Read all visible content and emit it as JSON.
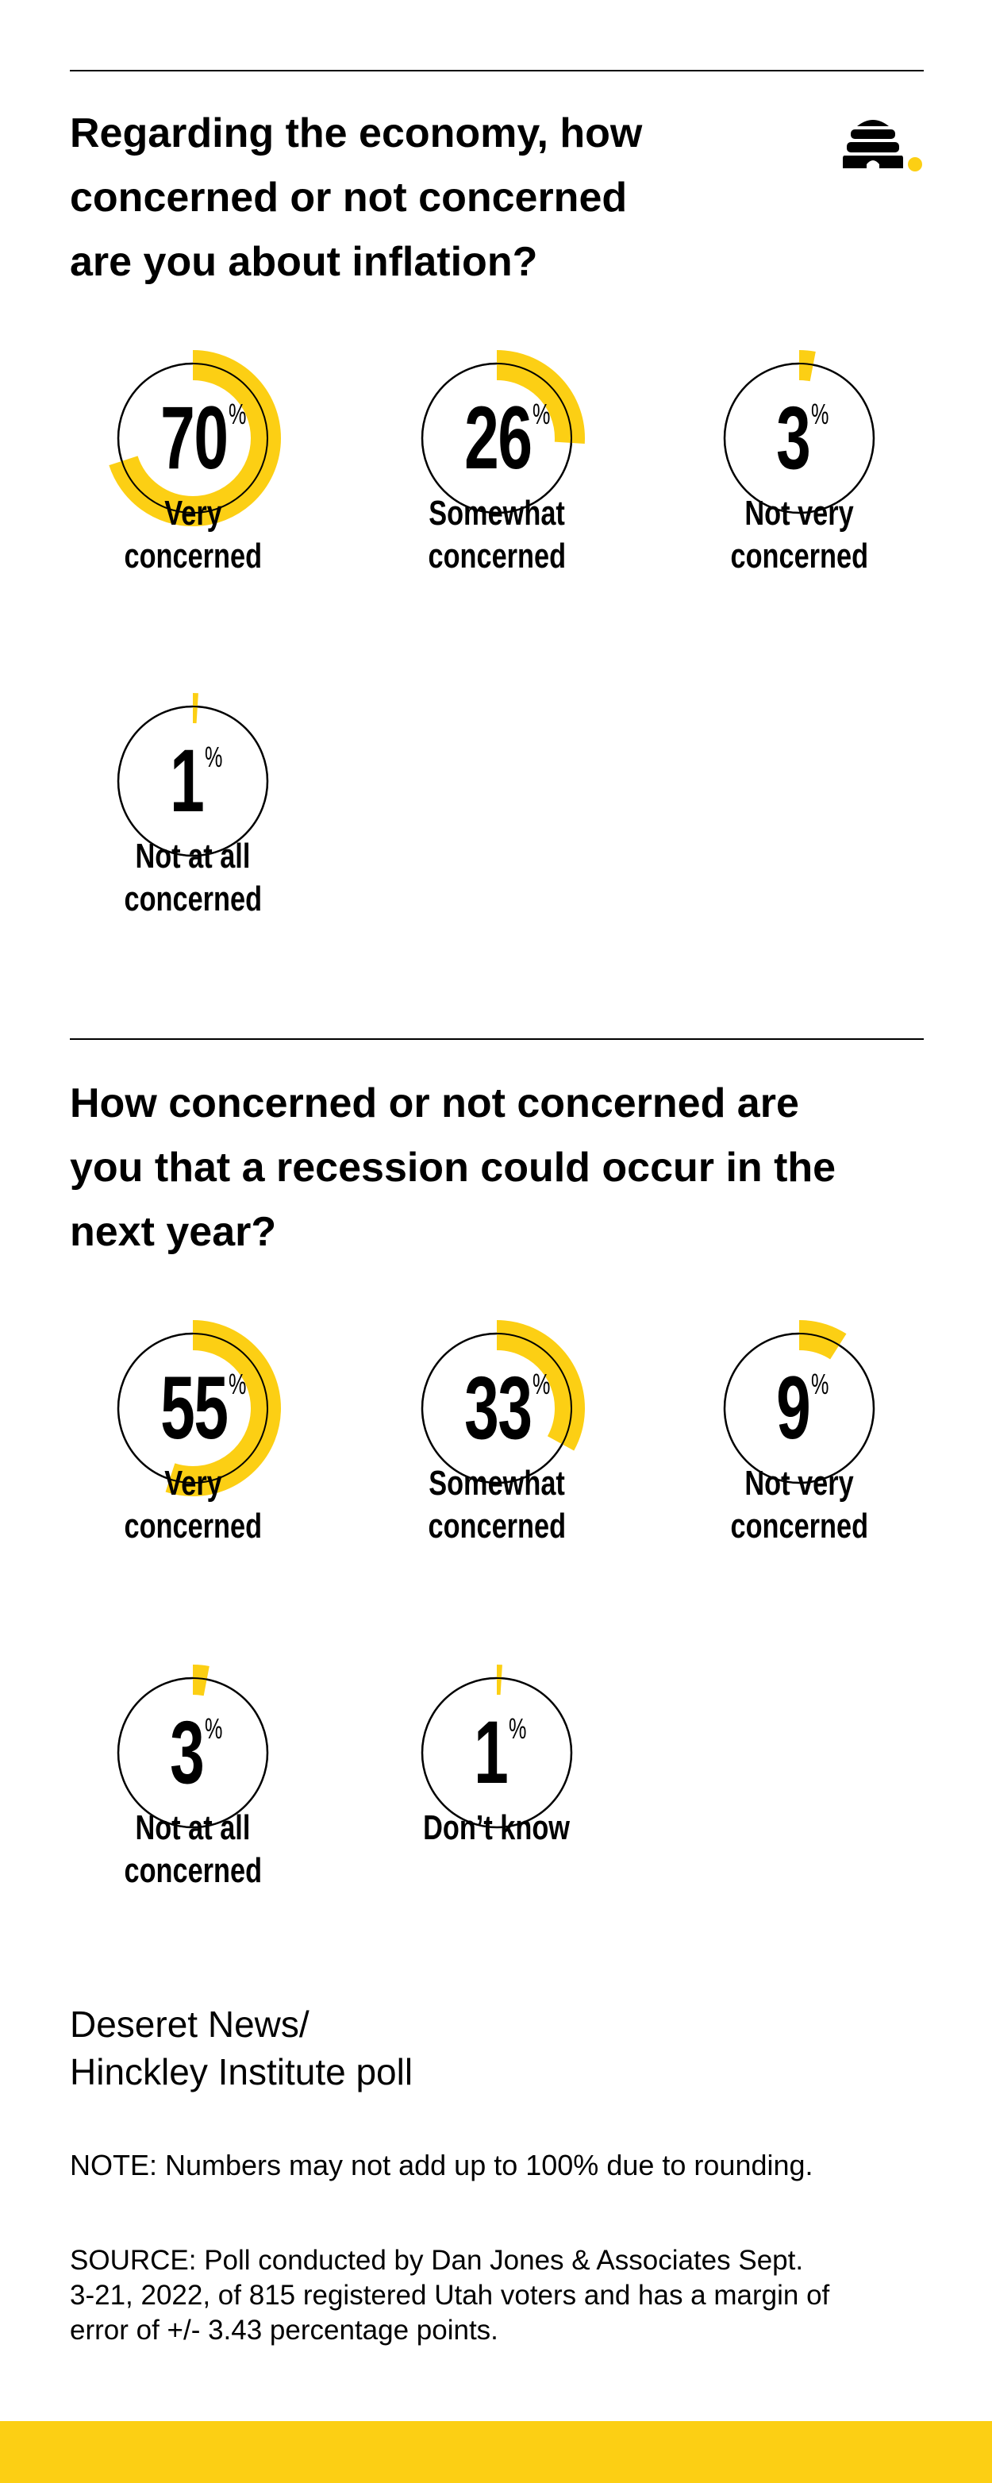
{
  "colors": {
    "accent": "#FCCF14",
    "ink": "#000000"
  },
  "logo": {
    "icon": "beehive-icon"
  },
  "questions": [
    {
      "title_lines": [
        "Regarding the economy, how",
        "concerned or not concerned",
        "are you about inflation?"
      ],
      "responses": [
        {
          "value": "70",
          "pct": 70,
          "unit": "%",
          "label_lines": [
            "Very",
            "concerned"
          ]
        },
        {
          "value": "26",
          "pct": 26,
          "unit": "%",
          "label_lines": [
            "Somewhat",
            "concerned"
          ]
        },
        {
          "value": "3",
          "pct": 3,
          "unit": "%",
          "label_lines": [
            "Not very",
            "concerned"
          ]
        },
        {
          "value": "1",
          "pct": 1,
          "unit": "%",
          "label_lines": [
            "Not at all",
            "concerned"
          ]
        }
      ]
    },
    {
      "title_lines": [
        "How concerned or not concerned are",
        "you that a recession could occur in the",
        "next year?"
      ],
      "responses": [
        {
          "value": "55",
          "pct": 55,
          "unit": "%",
          "label_lines": [
            "Very",
            "concerned"
          ]
        },
        {
          "value": "33",
          "pct": 33,
          "unit": "%",
          "label_lines": [
            "Somewhat",
            "concerned"
          ]
        },
        {
          "value": "9",
          "pct": 9,
          "unit": "%",
          "label_lines": [
            "Not very",
            "concerned"
          ]
        },
        {
          "value": "3",
          "pct": 3,
          "unit": "%",
          "label_lines": [
            "Not at all",
            "concerned"
          ]
        },
        {
          "value": "1",
          "pct": 1,
          "unit": "%",
          "label_lines": [
            "Don’t know"
          ]
        }
      ]
    }
  ],
  "chart_data": [
    {
      "type": "pie",
      "title": "Regarding the economy, how concerned or not concerned are you about inflation?",
      "categories": [
        "Very concerned",
        "Somewhat concerned",
        "Not very concerned",
        "Not at all concerned"
      ],
      "values": [
        70,
        26,
        3,
        1
      ]
    },
    {
      "type": "pie",
      "title": "How concerned or not concerned are you that a recession could occur in the next year?",
      "categories": [
        "Very concerned",
        "Somewhat concerned",
        "Not very concerned",
        "Not at all concerned",
        "Don’t know"
      ],
      "values": [
        55,
        33,
        9,
        3,
        1
      ]
    }
  ],
  "footer": {
    "credit_lines": [
      "Deseret News/",
      "Hinckley Institute poll"
    ],
    "note": "NOTE: Numbers may not add up to 100% due to rounding.",
    "source_lines": [
      "SOURCE: Poll conducted by Dan Jones & Associates Sept.",
      "3-21, 2022, of 815 registered Utah voters and has a margin of",
      "error of +/- 3.43 percentage points."
    ]
  }
}
